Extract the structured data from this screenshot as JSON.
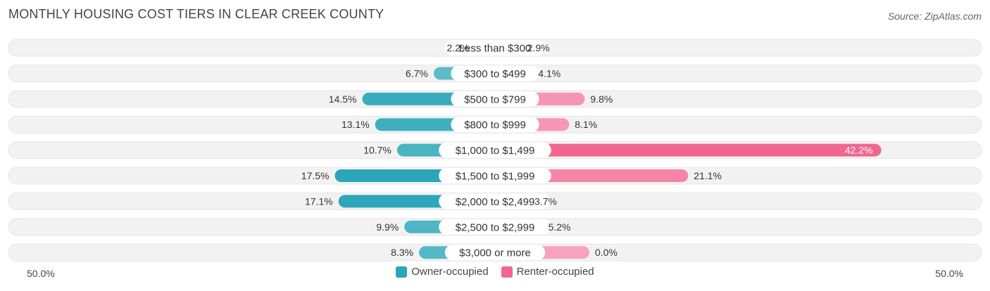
{
  "title": "MONTHLY HOUSING COST TIERS IN CLEAR CREEK COUNTY",
  "source": "Source: ZipAtlas.com",
  "axis": {
    "left_label": "50.0%",
    "right_label": "50.0%"
  },
  "legend": {
    "owner_label": "Owner-occupied",
    "renter_label": "Renter-occupied"
  },
  "colors": {
    "owner": "#2aa6b8",
    "owner_light": "#7ccad4",
    "renter": "#f0668f",
    "renter_light": "#f7a3bd",
    "track": "#f2f2f2"
  },
  "chart_data": {
    "type": "bar",
    "orientation": "diverging-horizontal",
    "title": "MONTHLY HOUSING COST TIERS IN CLEAR CREEK COUNTY",
    "xlim": [
      -50,
      50
    ],
    "categories": [
      "Less than $300",
      "$300 to $499",
      "$500 to $799",
      "$800 to $999",
      "$1,000 to $1,499",
      "$1,500 to $1,999",
      "$2,000 to $2,499",
      "$2,500 to $2,999",
      "$3,000 or more"
    ],
    "series": [
      {
        "name": "Owner-occupied",
        "values": [
          2.2,
          6.7,
          14.5,
          13.1,
          10.7,
          17.5,
          17.1,
          9.9,
          8.3
        ],
        "labels": [
          "2.2%",
          "6.7%",
          "14.5%",
          "13.1%",
          "10.7%",
          "17.5%",
          "17.1%",
          "9.9%",
          "8.3%"
        ]
      },
      {
        "name": "Renter-occupied",
        "values": [
          2.9,
          4.1,
          9.8,
          8.1,
          42.2,
          21.1,
          3.7,
          5.2,
          0.0
        ],
        "labels": [
          "2.9%",
          "4.1%",
          "9.8%",
          "8.1%",
          "42.2%",
          "21.1%",
          "3.7%",
          "5.2%",
          "0.0%"
        ]
      }
    ]
  }
}
